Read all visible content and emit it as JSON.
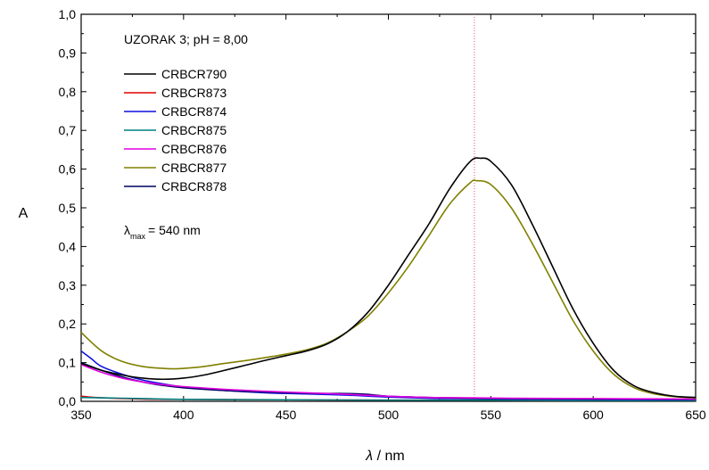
{
  "chart_data": {
    "type": "line",
    "title": "",
    "annotation_sample": "UZORAK 3; pH = 8,00",
    "annotation_lambda": {
      "symbol": "λ",
      "subscript": "max",
      "value": "= 540 nm"
    },
    "xlabel": {
      "symbol": "λ",
      "unit": " / nm"
    },
    "ylabel": "A",
    "xlim": [
      350,
      650
    ],
    "ylim": [
      0,
      1.0
    ],
    "x_ticks": [
      350,
      400,
      450,
      500,
      550,
      600,
      650
    ],
    "x_tick_labels": [
      "350",
      "400",
      "450",
      "500",
      "550",
      "600",
      "650"
    ],
    "y_ticks": [
      0,
      0.1,
      0.2,
      0.3,
      0.4,
      0.5,
      0.6,
      0.7,
      0.8,
      0.9,
      1.0
    ],
    "y_tick_labels": [
      "0,0",
      "0,1",
      "0,2",
      "0,3",
      "0,4",
      "0,5",
      "0,6",
      "0,7",
      "0,8",
      "0,9",
      "1,0"
    ],
    "reference_line_x": 542,
    "reference_line_color": "#e0506a",
    "grid": false,
    "legend_position": "top-left",
    "series": [
      {
        "name": "CRBCR790",
        "color": "#000000",
        "points": [
          [
            350,
            0.098
          ],
          [
            360,
            0.08
          ],
          [
            370,
            0.068
          ],
          [
            380,
            0.06
          ],
          [
            390,
            0.057
          ],
          [
            400,
            0.06
          ],
          [
            410,
            0.068
          ],
          [
            420,
            0.08
          ],
          [
            430,
            0.093
          ],
          [
            440,
            0.106
          ],
          [
            450,
            0.118
          ],
          [
            460,
            0.13
          ],
          [
            470,
            0.148
          ],
          [
            480,
            0.18
          ],
          [
            490,
            0.23
          ],
          [
            500,
            0.3
          ],
          [
            510,
            0.38
          ],
          [
            520,
            0.46
          ],
          [
            530,
            0.55
          ],
          [
            540,
            0.62
          ],
          [
            545,
            0.628
          ],
          [
            550,
            0.62
          ],
          [
            560,
            0.56
          ],
          [
            570,
            0.46
          ],
          [
            580,
            0.35
          ],
          [
            590,
            0.24
          ],
          [
            600,
            0.15
          ],
          [
            610,
            0.08
          ],
          [
            620,
            0.04
          ],
          [
            630,
            0.022
          ],
          [
            640,
            0.013
          ],
          [
            650,
            0.01
          ]
        ]
      },
      {
        "name": "CRBCR873",
        "color": "#e00000",
        "points": [
          [
            350,
            0.013
          ],
          [
            360,
            0.009
          ],
          [
            380,
            0.006
          ],
          [
            400,
            0.005
          ],
          [
            450,
            0.004
          ],
          [
            500,
            0.003
          ],
          [
            550,
            0.003
          ],
          [
            600,
            0.002
          ],
          [
            650,
            0.002
          ]
        ]
      },
      {
        "name": "CRBCR874",
        "color": "#1010e0",
        "points": [
          [
            350,
            0.13
          ],
          [
            355,
            0.11
          ],
          [
            360,
            0.09
          ],
          [
            370,
            0.07
          ],
          [
            380,
            0.055
          ],
          [
            390,
            0.045
          ],
          [
            400,
            0.037
          ],
          [
            420,
            0.028
          ],
          [
            440,
            0.022
          ],
          [
            460,
            0.019
          ],
          [
            480,
            0.016
          ],
          [
            500,
            0.011
          ],
          [
            520,
            0.008
          ],
          [
            540,
            0.007
          ],
          [
            560,
            0.006
          ],
          [
            600,
            0.005
          ],
          [
            650,
            0.004
          ]
        ]
      },
      {
        "name": "CRBCR875",
        "color": "#008080",
        "points": [
          [
            350,
            0.01
          ],
          [
            380,
            0.007
          ],
          [
            400,
            0.005
          ],
          [
            450,
            0.004
          ],
          [
            500,
            0.003
          ],
          [
            550,
            0.003
          ],
          [
            600,
            0.002
          ],
          [
            650,
            0.002
          ]
        ]
      },
      {
        "name": "CRBCR876",
        "color": "#e000e0",
        "points": [
          [
            350,
            0.095
          ],
          [
            360,
            0.075
          ],
          [
            370,
            0.06
          ],
          [
            380,
            0.05
          ],
          [
            390,
            0.043
          ],
          [
            400,
            0.038
          ],
          [
            420,
            0.031
          ],
          [
            440,
            0.026
          ],
          [
            460,
            0.022
          ],
          [
            480,
            0.018
          ],
          [
            500,
            0.013
          ],
          [
            520,
            0.01
          ],
          [
            540,
            0.009
          ],
          [
            560,
            0.008
          ],
          [
            600,
            0.007
          ],
          [
            650,
            0.006
          ]
        ]
      },
      {
        "name": "CRBCR877",
        "color": "#808000",
        "points": [
          [
            350,
            0.178
          ],
          [
            360,
            0.13
          ],
          [
            370,
            0.103
          ],
          [
            380,
            0.09
          ],
          [
            390,
            0.085
          ],
          [
            395,
            0.084
          ],
          [
            400,
            0.085
          ],
          [
            410,
            0.09
          ],
          [
            420,
            0.098
          ],
          [
            430,
            0.105
          ],
          [
            440,
            0.113
          ],
          [
            450,
            0.122
          ],
          [
            460,
            0.133
          ],
          [
            470,
            0.15
          ],
          [
            480,
            0.18
          ],
          [
            490,
            0.22
          ],
          [
            500,
            0.28
          ],
          [
            510,
            0.35
          ],
          [
            520,
            0.43
          ],
          [
            530,
            0.51
          ],
          [
            540,
            0.565
          ],
          [
            543,
            0.57
          ],
          [
            550,
            0.56
          ],
          [
            560,
            0.5
          ],
          [
            570,
            0.41
          ],
          [
            580,
            0.31
          ],
          [
            590,
            0.21
          ],
          [
            600,
            0.13
          ],
          [
            610,
            0.07
          ],
          [
            620,
            0.035
          ],
          [
            630,
            0.019
          ],
          [
            640,
            0.012
          ],
          [
            650,
            0.009
          ]
        ]
      },
      {
        "name": "CRBCR878",
        "color": "#000060",
        "points": [
          [
            350,
            0.1
          ],
          [
            360,
            0.08
          ],
          [
            370,
            0.063
          ],
          [
            380,
            0.05
          ],
          [
            390,
            0.041
          ],
          [
            400,
            0.035
          ],
          [
            420,
            0.028
          ],
          [
            440,
            0.024
          ],
          [
            460,
            0.021
          ],
          [
            480,
            0.02
          ],
          [
            490,
            0.018
          ],
          [
            500,
            0.013
          ],
          [
            520,
            0.01
          ],
          [
            540,
            0.008
          ],
          [
            560,
            0.007
          ],
          [
            600,
            0.006
          ],
          [
            650,
            0.005
          ]
        ]
      }
    ]
  }
}
